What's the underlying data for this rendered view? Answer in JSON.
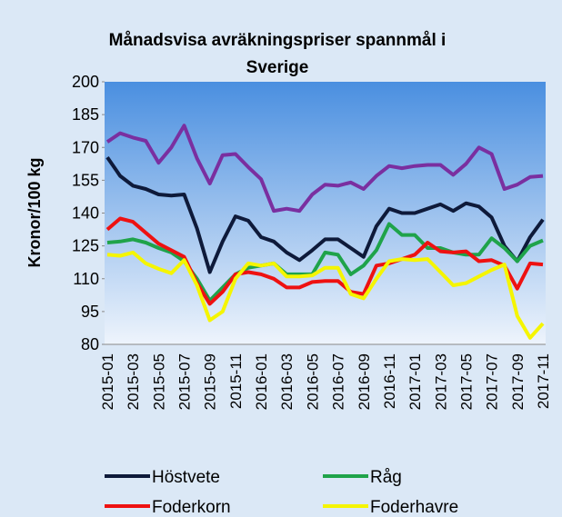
{
  "chart_data": {
    "type": "line",
    "title": "Månadsvisa avräkningspriser spannmål i Sverige",
    "y_label": "Kronor/100 kg",
    "categories": [
      "2015-01",
      null,
      "2015-03",
      null,
      "2015-05",
      null,
      "2015-07",
      null,
      "2015-09",
      null,
      "2015-11",
      null,
      "2016-01",
      null,
      "2016-03",
      null,
      "2016-05",
      null,
      "2016-07",
      null,
      "2016-09",
      null,
      "2016-11",
      null,
      "2017-01",
      null,
      "2017-03",
      null,
      "2017-05",
      null,
      "2017-07",
      null,
      "2017-09",
      null,
      "2017-11"
    ],
    "series": [
      {
        "name": "Höstvete",
        "color": "#0e1a3a",
        "values": [
          165.5,
          157,
          152.5,
          151,
          148.5,
          148,
          148.5,
          133,
          113,
          127,
          138.5,
          136.5,
          129,
          127,
          122,
          118.5,
          123,
          128,
          128,
          124,
          120,
          134,
          142,
          140,
          140,
          142,
          144,
          141,
          144.5,
          143,
          138,
          125,
          118,
          129,
          137
        ]
      },
      {
        "name": "Råg",
        "color": "#1fa34a",
        "values": [
          126.5,
          127,
          128,
          126.5,
          124,
          122,
          118,
          110,
          100,
          106,
          112,
          115,
          116,
          117,
          112,
          112,
          112,
          122,
          121,
          112,
          116,
          123,
          135,
          130,
          130,
          124,
          124,
          122,
          121,
          121,
          128.5,
          124,
          118,
          125,
          127.5
        ]
      },
      {
        "name": "Foderkorn",
        "color": "#ee1111",
        "values": [
          132.5,
          137.5,
          136,
          131,
          126,
          123,
          120,
          108,
          98.5,
          104,
          112,
          113,
          112,
          110,
          106,
          106,
          108.5,
          109,
          109,
          104,
          103,
          116,
          117,
          119,
          121,
          126.5,
          122.5,
          122,
          122.5,
          118,
          118.5,
          116,
          105.5,
          117,
          116.5
        ]
      },
      {
        "name": "Foderhavre",
        "color": "#f5f500",
        "values": [
          121,
          120.5,
          122,
          117,
          114.5,
          112.5,
          118.5,
          107,
          91,
          95,
          110,
          117,
          116,
          117,
          111,
          111,
          111.5,
          115,
          115,
          103,
          101,
          110,
          118,
          119,
          118.5,
          119,
          113,
          107,
          108,
          111,
          114,
          116.5,
          93,
          83,
          89.5
        ]
      },
      {
        "color": "#7a2fa0",
        "values": [
          172.5,
          176.5,
          174.5,
          173,
          163,
          170,
          180,
          165,
          153.5,
          166.5,
          167,
          161,
          155.5,
          141,
          142,
          141,
          148.5,
          153,
          152.5,
          154,
          151,
          157,
          161.5,
          160.5,
          161.5,
          162,
          162,
          157.5,
          162.5,
          170,
          167,
          151,
          153,
          156.5,
          157
        ]
      }
    ],
    "ylim": [
      80,
      200
    ],
    "yticks": [
      80,
      95,
      110,
      125,
      140,
      155,
      170,
      185,
      200
    ]
  }
}
